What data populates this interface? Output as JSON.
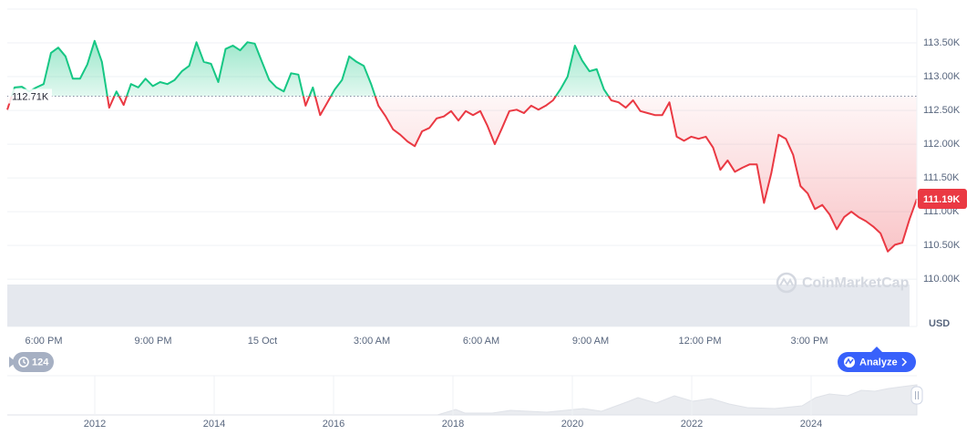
{
  "chart_data": [
    {
      "type": "line",
      "values": [
        112510,
        112840,
        112850,
        112780,
        112840,
        112890,
        113350,
        113430,
        113300,
        112970,
        112970,
        113180,
        113530,
        113220,
        112540,
        112780,
        112580,
        112890,
        112840,
        112970,
        112860,
        112920,
        112890,
        112950,
        113080,
        113160,
        113510,
        113220,
        113190,
        112920,
        113410,
        113460,
        113390,
        113510,
        113490,
        113220,
        112950,
        112840,
        112780,
        113050,
        113030,
        112570,
        112840,
        112430,
        112620,
        112810,
        112950,
        113300,
        113220,
        113160,
        112890,
        112570,
        112410,
        112220,
        112140,
        112040,
        111970,
        112190,
        112240,
        112380,
        112410,
        112490,
        112350,
        112490,
        112430,
        112490,
        112270,
        112000,
        112240,
        112490,
        112510,
        112460,
        112570,
        112510,
        112570,
        112650,
        112810,
        113000,
        113460,
        113240,
        113080,
        113110,
        112810,
        112650,
        112620,
        112540,
        112650,
        112490,
        112460,
        112430,
        112430,
        112620,
        112110,
        112050,
        112110,
        112080,
        112110,
        111950,
        111620,
        111760,
        111590,
        111650,
        111700,
        111700,
        111130,
        111570,
        112140,
        112080,
        111840,
        111380,
        111270,
        111040,
        111100,
        110960,
        110740,
        110920,
        111000,
        110920,
        110860,
        110780,
        110680,
        110410,
        110510,
        110540,
        110890,
        111190
      ],
      "colors": {
        "above": "#16c784",
        "below": "#ea3943"
      },
      "reference_line": {
        "value": 112710,
        "label": "112.71K"
      },
      "price_tag": {
        "value": 111190,
        "label": "111.19K"
      },
      "ylim": [
        109300,
        114000
      ],
      "yticks": [
        {
          "value": 113500,
          "label": "113.50K"
        },
        {
          "value": 113000,
          "label": "113.00K"
        },
        {
          "value": 112500,
          "label": "112.50K"
        },
        {
          "value": 112000,
          "label": "112.00K"
        },
        {
          "value": 111500,
          "label": "111.50K"
        },
        {
          "value": 111000,
          "label": "111.00K"
        },
        {
          "value": 110500,
          "label": "110.50K"
        },
        {
          "value": 110000,
          "label": "110.00K"
        }
      ],
      "x_tick_labels": [
        "6:00 PM",
        "9:00 PM",
        "15 Oct",
        "3:00 AM",
        "6:00 AM",
        "9:00 AM",
        "12:00 PM",
        "3:00 PM"
      ],
      "y_axis_label": "USD",
      "grid": true
    },
    {
      "type": "navigator",
      "categories": [
        "2012",
        "2014",
        "2016",
        "2018",
        "2020",
        "2022",
        "2024"
      ]
    }
  ],
  "ui": {
    "history_count": 124,
    "analyze": "Analyze",
    "watermark": "CoinMarketCap"
  }
}
